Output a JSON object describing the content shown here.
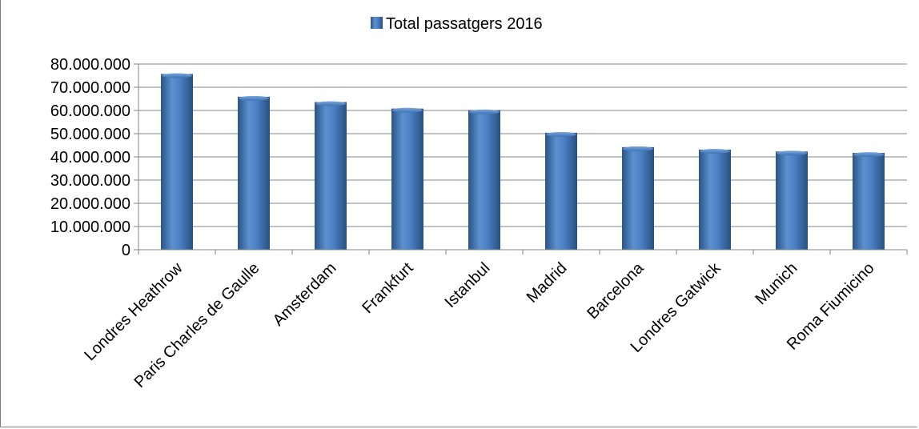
{
  "chart_data": {
    "type": "bar",
    "categories": [
      "Londres Heathrow",
      "Paris Charles de Gaulle",
      "Amsterdam",
      "Frankfurt",
      "Istanbul",
      "Madrid",
      "Barcelona",
      "Londres Gatwick",
      "Munich",
      "Roma Fiumicino"
    ],
    "series": [
      {
        "name": "Total passatgers 2016",
        "values": [
          75700000,
          65900000,
          63600000,
          60800000,
          60100000,
          50400000,
          44200000,
          43100000,
          42300000,
          41700000
        ]
      }
    ],
    "yticks": [
      "0",
      "10.000.000",
      "20.000.000",
      "30.000.000",
      "40.000.000",
      "50.000.000",
      "60.000.000",
      "70.000.000",
      "80.000.000"
    ],
    "ylim": [
      0,
      80000000
    ],
    "grid": true,
    "legend_position": "top",
    "colors": {
      "bar": "#4f81bd",
      "bar_dark": "#2c5a8f",
      "grid": "#868686"
    }
  }
}
